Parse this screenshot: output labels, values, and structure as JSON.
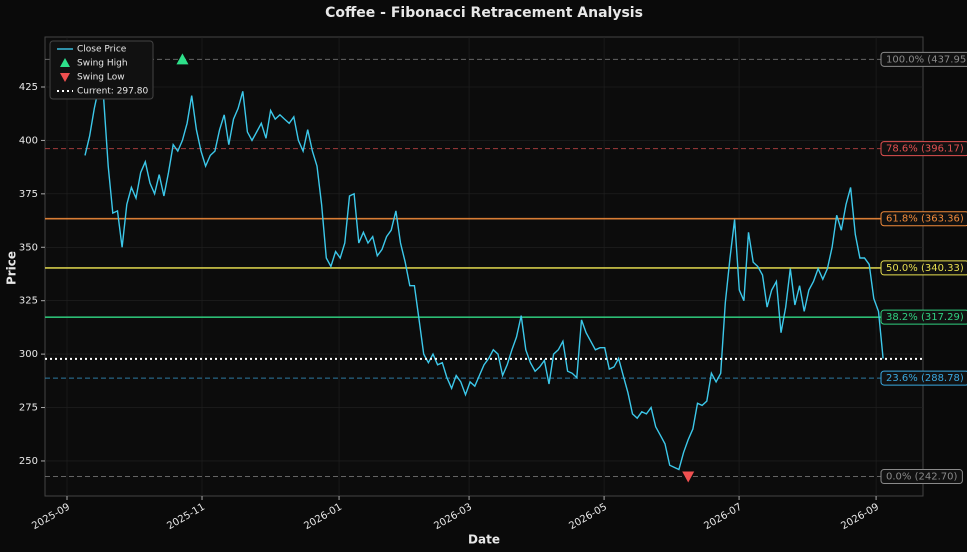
{
  "chart_data": {
    "type": "line",
    "title": "Coffee - Fibonacci Retracement Analysis",
    "xlabel": "Date",
    "ylabel": "Price",
    "xlim": [
      -8.62,
      180.6
    ],
    "ylim": [
      233.6,
      448.4
    ],
    "xticks": [
      {
        "value": -3.88,
        "label": "2025-09"
      },
      {
        "value": 25.22,
        "label": "2025-11"
      },
      {
        "value": 54.75,
        "label": "2026-01"
      },
      {
        "value": 82.77,
        "label": "2026-03"
      },
      {
        "value": 111.87,
        "label": "2026-05"
      },
      {
        "value": 140.96,
        "label": "2026-07"
      },
      {
        "value": 170.49,
        "label": "2026-09"
      }
    ],
    "yticks": [
      250,
      275,
      300,
      325,
      350,
      375,
      400,
      425
    ],
    "grid": true,
    "legend": "upper left",
    "series": [
      {
        "name": "Close Price",
        "color": "#3cc8ea",
        "values": [
          393,
          402,
          415,
          425,
          420,
          388,
          366,
          367,
          350,
          370,
          378,
          373,
          385,
          390,
          380,
          375,
          384,
          374,
          385,
          398,
          395,
          400,
          408,
          421,
          405,
          395,
          388,
          393,
          395,
          405,
          412,
          398,
          410,
          415,
          423,
          404,
          400,
          404,
          408,
          401,
          414,
          410,
          412,
          410,
          408,
          411,
          400,
          395,
          405,
          395,
          388,
          370,
          345,
          341,
          348,
          345,
          352,
          374,
          375,
          352,
          357,
          352,
          355,
          346,
          349,
          355,
          358,
          367,
          352,
          343,
          332,
          332,
          316,
          300,
          296,
          300,
          295,
          296,
          289,
          284,
          290,
          287,
          281,
          287,
          285,
          290,
          295,
          298,
          302,
          300,
          290,
          295,
          302,
          308,
          318,
          302,
          296,
          292,
          294,
          297,
          286,
          300,
          302,
          306,
          292,
          291,
          289,
          316,
          310,
          306,
          302,
          303,
          303,
          293,
          294,
          298,
          290,
          282,
          272,
          270,
          273,
          272,
          275,
          266,
          262,
          258,
          248,
          247,
          246,
          254,
          260,
          265,
          277,
          276,
          278,
          291,
          287,
          291,
          324,
          345,
          363,
          330,
          325,
          357,
          343,
          341,
          337,
          322,
          330,
          334,
          310,
          322,
          340,
          323,
          332,
          320,
          330,
          334,
          340,
          335,
          340,
          350,
          365,
          358,
          370,
          378,
          356,
          345,
          345,
          342,
          326,
          320,
          298
        ]
      },
      {
        "name": "Swing High",
        "type": "scatter",
        "marker": "triangle-up",
        "color": "#2ee08a",
        "x": [
          21
        ],
        "values": [
          437.95
        ]
      },
      {
        "name": "Swing Low",
        "type": "scatter",
        "marker": "triangle-down",
        "color": "#f05050",
        "x": [
          130
        ],
        "values": [
          242.7
        ]
      },
      {
        "name": "Current: 297.80",
        "type": "hline",
        "style": "dotted",
        "color": "#ffffff",
        "values": [
          297.8
        ]
      }
    ],
    "levels": [
      {
        "label": "100.0% (437.95)",
        "value": 437.95,
        "color": "#8a8a8a",
        "style": "dashed"
      },
      {
        "label": "78.6% (396.17)",
        "value": 396.17,
        "color": "#e05050",
        "style": "dashed"
      },
      {
        "label": "61.8% (363.36)",
        "value": 363.36,
        "color": "#f08a3a",
        "style": "solid"
      },
      {
        "label": "50.0% (340.33)",
        "value": 340.33,
        "color": "#e8df50",
        "style": "solid"
      },
      {
        "label": "38.2% (317.29)",
        "value": 317.29,
        "color": "#30d080",
        "style": "solid"
      },
      {
        "label": "23.6% (288.78)",
        "value": 288.78,
        "color": "#3aa8e0",
        "style": "dashed"
      },
      {
        "label": "0.0% (242.70)",
        "value": 242.7,
        "color": "#8a8a8a",
        "style": "dashed"
      }
    ]
  }
}
